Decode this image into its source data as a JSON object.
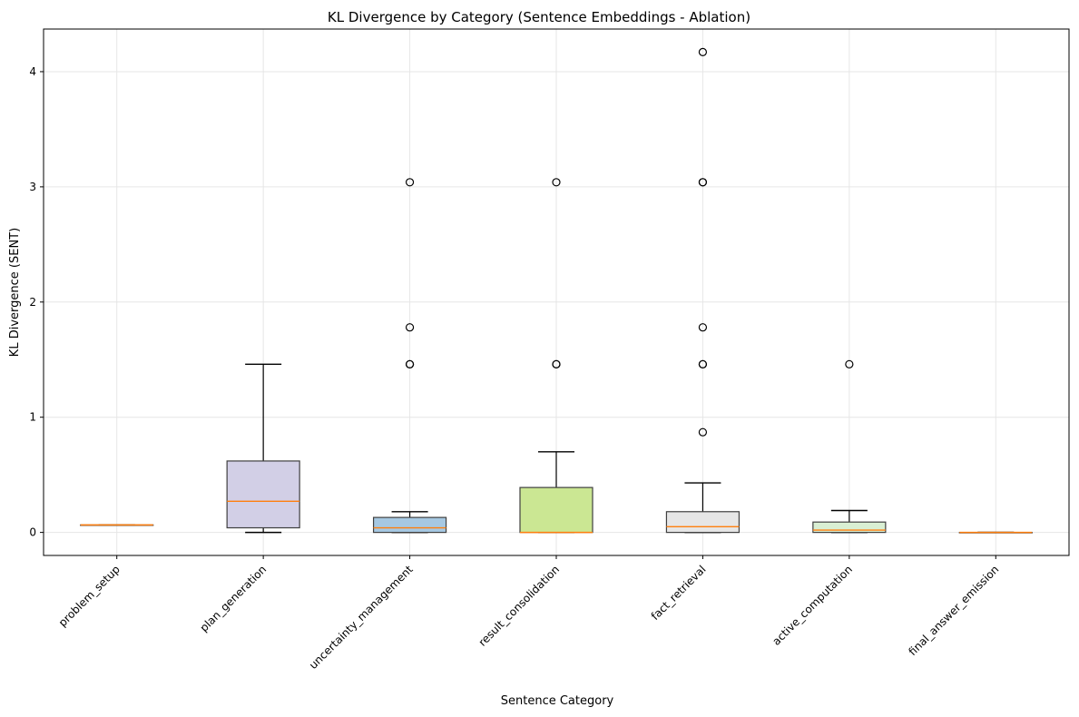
{
  "chart_data": {
    "type": "boxplot",
    "title": "KL Divergence by Category (Sentence Embeddings - Ablation)",
    "xlabel": "Sentence Category",
    "ylabel": "KL Divergence (SENT)",
    "ylim": [
      -0.2,
      4.37
    ],
    "yticks": [
      0,
      1,
      2,
      3,
      4
    ],
    "ytick_labels": [
      "0",
      "1",
      "2",
      "3",
      "4"
    ],
    "grid": true,
    "categories": [
      "problem_setup",
      "plan_generation",
      "uncertainty_management",
      "result_consolidation",
      "fact_retrieval",
      "active_computation",
      "final_answer_emission"
    ],
    "boxes": [
      {
        "category": "problem_setup",
        "whisker_low": 0.065,
        "q1": 0.065,
        "median": 0.065,
        "q3": 0.065,
        "whisker_high": 0.065,
        "outliers": [],
        "color": "#7fc97f"
      },
      {
        "category": "plan_generation",
        "whisker_low": 0.0,
        "q1": 0.04,
        "median": 0.27,
        "q3": 0.62,
        "whisker_high": 1.46,
        "outliers": [],
        "color": "#d2cfe6"
      },
      {
        "category": "uncertainty_management",
        "whisker_low": 0.0,
        "q1": 0.0,
        "median": 0.04,
        "q3": 0.13,
        "whisker_high": 0.18,
        "outliers": [
          1.46,
          1.46,
          1.78,
          3.04
        ],
        "color": "#a6c8e2"
      },
      {
        "category": "result_consolidation",
        "whisker_low": 0.0,
        "q1": 0.0,
        "median": 0.0,
        "q3": 0.39,
        "whisker_high": 0.7,
        "outliers": [
          1.46,
          1.46,
          3.04
        ],
        "color": "#cbe793"
      },
      {
        "category": "fact_retrieval",
        "whisker_low": 0.0,
        "q1": 0.0,
        "median": 0.05,
        "q3": 0.18,
        "whisker_high": 0.43,
        "outliers": [
          0.87,
          1.46,
          1.46,
          1.78,
          3.04,
          3.04,
          4.17
        ],
        "color": "#e6e6e6"
      },
      {
        "category": "active_computation",
        "whisker_low": 0.0,
        "q1": 0.0,
        "median": 0.02,
        "q3": 0.09,
        "whisker_high": 0.19,
        "outliers": [
          1.46
        ],
        "color": "#d9efd3"
      },
      {
        "category": "final_answer_emission",
        "whisker_low": 0.0,
        "q1": 0.0,
        "median": 0.0,
        "q3": 0.0,
        "whisker_high": 0.0,
        "outliers": [],
        "color": "#bcbcbc"
      }
    ],
    "median_color": "#ff7f0e",
    "box_edge_color": "#404040"
  }
}
